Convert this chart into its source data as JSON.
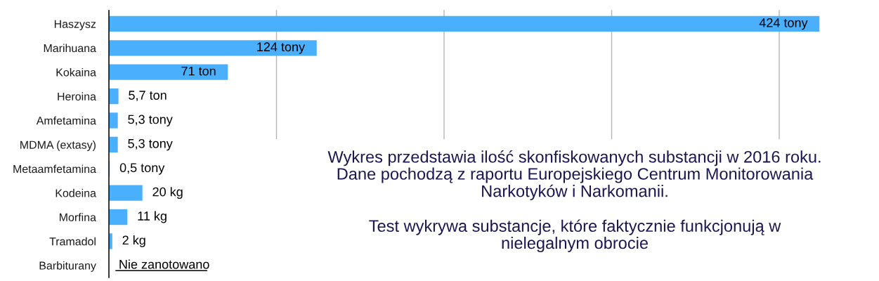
{
  "chart_data": {
    "type": "bar",
    "orientation": "horizontal",
    "categories": [
      "Haszysz",
      "Marihuana",
      "Kokaina",
      "Heroina",
      "Amfetamina",
      "MDMA (extasy)",
      "Metaamfetamina",
      "Kodeina",
      "Morfina",
      "Tramadol",
      "Barbiturany"
    ],
    "values": [
      424,
      124,
      71,
      5.7,
      5.3,
      5.3,
      0.5,
      20,
      11,
      2,
      null
    ],
    "value_labels": [
      "424 tony",
      "124 tony",
      "71 ton",
      "5,7 ton",
      "5,3 tony",
      "5,3 tony",
      "0,5 tony",
      "20 kg",
      "11 kg",
      "2 kg",
      "Nie zanotowano"
    ],
    "color": "#4ab0fd",
    "grid": "x",
    "tick_labels": "y",
    "annotations": [
      "Wykres przedstawia ilość skonfiskowanych substancji w 2016 roku.\nDane pochodzą z raportu Europejskiego Centrum Monitorowania\nNarkotyków i Narkomanii.",
      "Test wykrywa substancje, które faktycznie funkcjonują w\nnielegalnym obrocie"
    ]
  }
}
